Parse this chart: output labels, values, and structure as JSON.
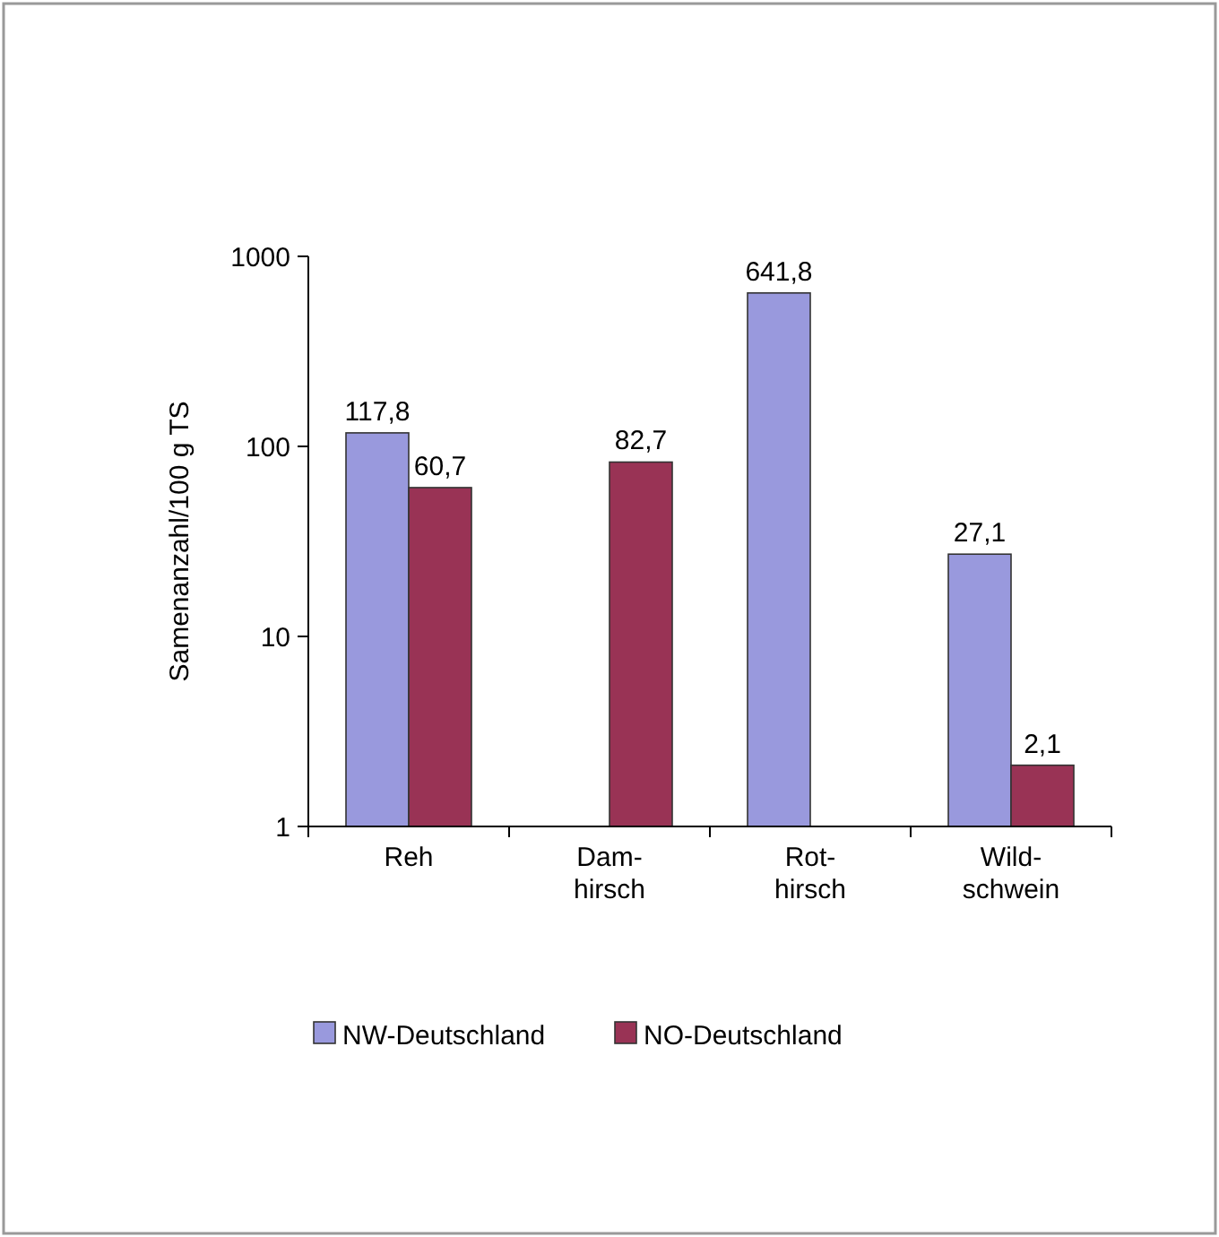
{
  "chart_data": {
    "type": "bar",
    "ylabel": "Samenanzahl/100 g TS",
    "categories": [
      "Reh",
      "Dam-\nhirsch",
      "Rot-\nhirsch",
      "Wild-\nschwein"
    ],
    "series": [
      {
        "name": "NW-Deutschland",
        "color": "#9999dd",
        "values": [
          117.8,
          null,
          641.8,
          27.1
        ],
        "value_labels": [
          "117,8",
          null,
          "641,8",
          "27,1"
        ]
      },
      {
        "name": "NO-Deutschland",
        "color": "#993355",
        "values": [
          60.7,
          82.7,
          null,
          2.1
        ],
        "value_labels": [
          "60,7",
          "82,7",
          null,
          "2,1"
        ]
      }
    ],
    "log": true,
    "ylim": [
      1,
      1000
    ],
    "yticks": [
      1,
      10,
      100,
      1000
    ],
    "grid": false,
    "legend": "bottom"
  }
}
